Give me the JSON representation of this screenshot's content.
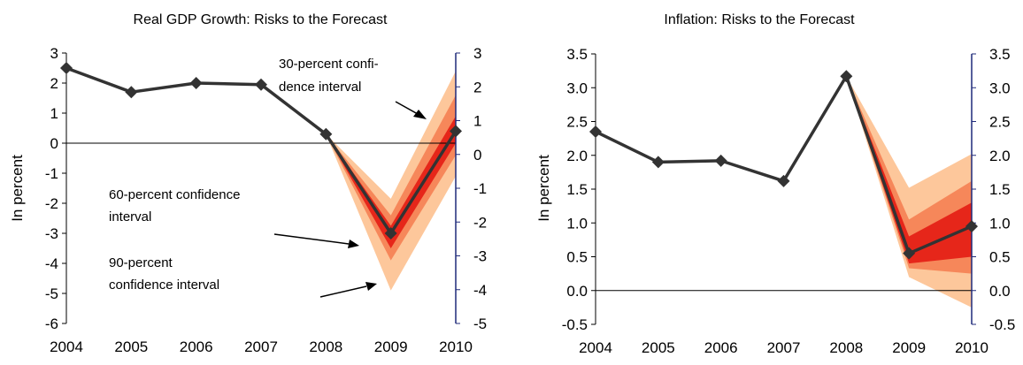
{
  "chart_data": [
    {
      "type": "line",
      "title": "Real GDP Growth: Risks to the Forecast",
      "ylabel": "In percent",
      "x": [
        "2004",
        "2005",
        "2006",
        "2007",
        "2008",
        "2009",
        "2010"
      ],
      "ylim": [
        -6,
        3
      ],
      "yticks": [
        "3",
        "2",
        "1",
        "0",
        "-1",
        "-2",
        "-3",
        "-4",
        "-5",
        "-6"
      ],
      "right_ylim": [
        -5,
        3
      ],
      "right_yticks": [
        "3",
        "2",
        "1",
        "0",
        "-1",
        "-2",
        "-3",
        "-4",
        "-5"
      ],
      "series": [
        {
          "values": [
            2.5,
            1.7,
            2.0,
            1.95,
            0.3,
            -3.0,
            0.4
          ]
        }
      ],
      "fan": {
        "x": [
          "2008",
          "2009",
          "2010"
        ],
        "center": [
          0.3,
          -3.0,
          0.4
        ],
        "bands": [
          {
            "level": 90,
            "lower": [
              0.3,
              -4.9,
              -1.1
            ],
            "upper": [
              0.3,
              -1.85,
              2.4
            ]
          },
          {
            "level": 60,
            "lower": [
              0.3,
              -3.9,
              -0.4
            ],
            "upper": [
              0.3,
              -2.4,
              1.6
            ]
          },
          {
            "level": 30,
            "lower": [
              0.3,
              -3.5,
              0.0
            ],
            "upper": [
              0.3,
              -2.75,
              0.9
            ]
          }
        ]
      },
      "annotations": [
        {
          "lines": [
            "30-percent  confi-",
            "dence interval"
          ]
        },
        {
          "lines": [
            "60-percent confidence",
            "interval"
          ]
        },
        {
          "lines": [
            "90-percent",
            "confidence interval"
          ]
        }
      ],
      "colors": {
        "line": "#333333",
        "band90": "#fdc79b",
        "band60": "#f6875a",
        "band30": "#e6261a",
        "right_axis": "#1f2a7a"
      }
    },
    {
      "type": "line",
      "title": "Inflation: Risks to the Forecast",
      "ylabel": "In percent",
      "x": [
        "2004",
        "2005",
        "2006",
        "2007",
        "2008",
        "2009",
        "2010"
      ],
      "ylim": [
        -0.5,
        3.5
      ],
      "yticks": [
        "3.5",
        "3.0",
        "2.5",
        "2.0",
        "1.5",
        "1.0",
        "0.5",
        "0.0",
        "-0.5"
      ],
      "right_ylim": [
        -0.5,
        3.5
      ],
      "right_yticks": [
        "3.5",
        "3.0",
        "2.5",
        "2.0",
        "1.5",
        "1.0",
        "0.5",
        "0.0",
        "-0.5"
      ],
      "series": [
        {
          "values": [
            2.35,
            1.9,
            1.92,
            1.62,
            3.17,
            0.55,
            0.95
          ]
        }
      ],
      "fan": {
        "x": [
          "2008",
          "2009",
          "2010"
        ],
        "center": [
          3.17,
          0.55,
          0.95
        ],
        "bands": [
          {
            "level": 90,
            "lower": [
              3.17,
              0.2,
              -0.25
            ],
            "upper": [
              3.17,
              1.52,
              2.02
            ]
          },
          {
            "level": 60,
            "lower": [
              3.17,
              0.33,
              0.25
            ],
            "upper": [
              3.17,
              1.05,
              1.62
            ]
          },
          {
            "level": 30,
            "lower": [
              3.17,
              0.4,
              0.5
            ],
            "upper": [
              3.17,
              0.8,
              1.3
            ]
          }
        ]
      },
      "annotations": [],
      "colors": {
        "line": "#333333",
        "band90": "#fdc79b",
        "band60": "#f6875a",
        "band30": "#e6261a",
        "right_axis": "#1f2a7a"
      }
    }
  ]
}
